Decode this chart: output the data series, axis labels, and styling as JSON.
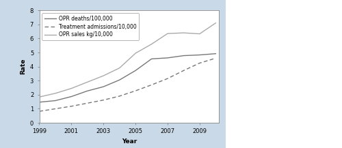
{
  "years": [
    1999,
    2000,
    2001,
    2002,
    2003,
    2004,
    2005,
    2006,
    2007,
    2008,
    2009,
    2010
  ],
  "opr_deaths": [
    1.47,
    1.58,
    1.87,
    2.27,
    2.57,
    3.05,
    3.72,
    4.55,
    4.62,
    4.78,
    4.83,
    4.92
  ],
  "treatment_admissions": [
    0.82,
    1.0,
    1.18,
    1.4,
    1.62,
    1.9,
    2.28,
    2.7,
    3.15,
    3.72,
    4.25,
    4.6
  ],
  "opr_sales": [
    1.84,
    2.1,
    2.45,
    2.9,
    3.35,
    3.9,
    4.95,
    5.6,
    6.35,
    6.4,
    6.33,
    7.1
  ],
  "deaths_color": "#777777",
  "admissions_color": "#777777",
  "sales_color": "#aaaaaa",
  "fig_bg_color": "#ffffff",
  "left_bg_color": "#c9d9e8",
  "plot_bg_color": "#ffffff",
  "xlabel": "Year",
  "ylabel": "Rate",
  "ylim": [
    0,
    8
  ],
  "yticks": [
    0,
    1,
    2,
    3,
    4,
    5,
    6,
    7,
    8
  ],
  "xticks": [
    1999,
    2001,
    2003,
    2005,
    2007,
    2009
  ],
  "legend_labels": [
    "OPR deaths/100,000",
    "Treatment admissions/10,000",
    "OPR sales kg/10,000"
  ]
}
